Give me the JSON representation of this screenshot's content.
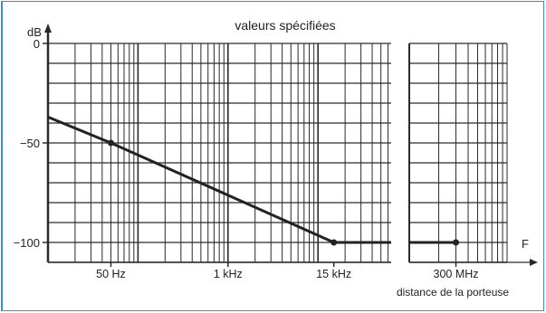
{
  "chart_data": {
    "type": "line",
    "title": "valeurs spécifiées",
    "ylabel": "dB",
    "xlabel": "F",
    "x_scale": "log",
    "ylim": [
      -110,
      0
    ],
    "grid": true,
    "yticks": [
      {
        "value": 0,
        "label": "0"
      },
      {
        "value": -50,
        "label": "−50"
      },
      {
        "value": -100,
        "label": "−100"
      }
    ],
    "xticks": [
      {
        "label": "50 Hz"
      },
      {
        "label": "1 kHz"
      },
      {
        "label": "15 kHz"
      },
      {
        "label": "300 MHz"
      }
    ],
    "annotations": [
      "distance de la porteuse"
    ],
    "series": [
      {
        "points": [
          {
            "x": "≈10 Hz",
            "y": -37
          },
          {
            "x": "50 Hz",
            "y": -50
          },
          {
            "x": "15 kHz",
            "y": -100
          },
          {
            "x": "300 MHz",
            "y": -100
          }
        ]
      }
    ],
    "colors": {
      "frame": "#3b8fd0",
      "grid": "#2a2a2a",
      "line": "#222222"
    }
  }
}
